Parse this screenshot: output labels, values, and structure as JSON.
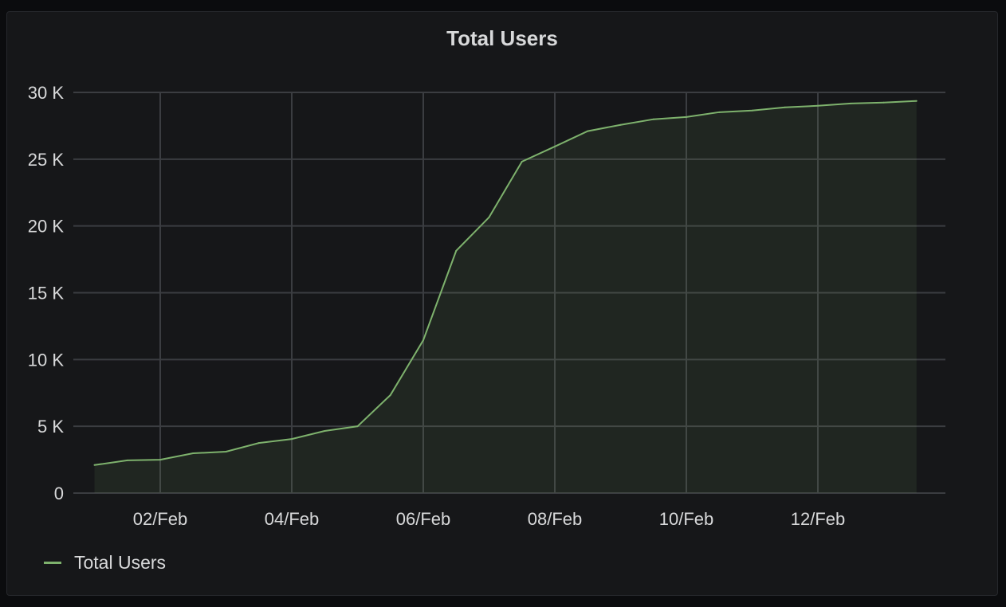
{
  "chart_data": {
    "type": "area",
    "title": "Total Users",
    "xlabel": "",
    "ylabel": "",
    "ylim": [
      0,
      30000
    ],
    "yticks": [
      0,
      5000,
      10000,
      15000,
      20000,
      25000,
      30000
    ],
    "ytick_labels": [
      "0",
      "5 K",
      "10 K",
      "15 K",
      "20 K",
      "25 K",
      "30 K"
    ],
    "xticks": [
      "2020-02-02T00:00",
      "2020-02-04T00:00",
      "2020-02-06T00:00",
      "2020-02-08T00:00",
      "2020-02-10T00:00",
      "2020-02-12T00:00"
    ],
    "xtick_labels": [
      "02/Feb",
      "04/Feb",
      "06/Feb",
      "08/Feb",
      "10/Feb",
      "12/Feb"
    ],
    "grid": true,
    "legend": "bottom-left",
    "series": [
      {
        "name": "Total Users",
        "color": "#7eb26d",
        "x": [
          "2020-02-01T00:00",
          "2020-02-01T12:00",
          "2020-02-02T00:00",
          "2020-02-02T12:00",
          "2020-02-03T00:00",
          "2020-02-03T12:00",
          "2020-02-04T00:00",
          "2020-02-04T12:00",
          "2020-02-05T00:00",
          "2020-02-05T12:00",
          "2020-02-06T00:00",
          "2020-02-06T12:00",
          "2020-02-07T00:00",
          "2020-02-07T12:00",
          "2020-02-08T00:00",
          "2020-02-08T12:00",
          "2020-02-09T00:00",
          "2020-02-09T12:00",
          "2020-02-10T00:00",
          "2020-02-10T12:00",
          "2020-02-11T00:00",
          "2020-02-11T12:00",
          "2020-02-12T00:00",
          "2020-02-12T12:00",
          "2020-02-13T00:00",
          "2020-02-13T12:00"
        ],
        "values": [
          2100,
          2450,
          2500,
          2980,
          3100,
          3750,
          4050,
          4650,
          5000,
          7340,
          11450,
          18140,
          20650,
          24820,
          25950,
          27100,
          27570,
          27990,
          28160,
          28520,
          28640,
          28880,
          29000,
          29170,
          29240,
          29360
        ]
      }
    ]
  }
}
